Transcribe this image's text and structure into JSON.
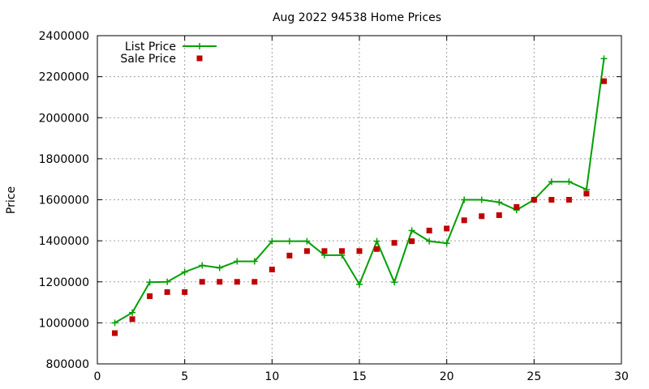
{
  "chart_data": {
    "type": "scatter",
    "title": "Aug 2022 94538 Home Prices",
    "xlabel": "",
    "ylabel": "Price",
    "xlim": [
      0,
      30
    ],
    "ylim": [
      800000,
      2400000
    ],
    "x_ticks": [
      0,
      5,
      10,
      15,
      20,
      25,
      30
    ],
    "y_ticks": [
      800000,
      1000000,
      1200000,
      1400000,
      1600000,
      1800000,
      2000000,
      2200000,
      2400000
    ],
    "grid": true,
    "legend_position": "top-left",
    "series": [
      {
        "name": "List Price",
        "style": "line-with-plus-markers",
        "color": "#00a000",
        "x": [
          1,
          2,
          3,
          4,
          5,
          6,
          7,
          8,
          9,
          10,
          11,
          12,
          13,
          14,
          15,
          16,
          17,
          18,
          19,
          20,
          21,
          22,
          23,
          24,
          25,
          26,
          27,
          28,
          29
        ],
        "values": [
          1000000,
          1050000,
          1198000,
          1200000,
          1248000,
          1280000,
          1268000,
          1300000,
          1300000,
          1398000,
          1398000,
          1398000,
          1330000,
          1330000,
          1188000,
          1398000,
          1198000,
          1450000,
          1398000,
          1388000,
          1600000,
          1600000,
          1588000,
          1550000,
          1600000,
          1688000,
          1688000,
          1650000,
          2288000
        ]
      },
      {
        "name": "Sale Price",
        "style": "square-markers",
        "color": "#c00000",
        "x": [
          1,
          2,
          3,
          4,
          5,
          6,
          7,
          8,
          9,
          10,
          11,
          12,
          13,
          14,
          15,
          16,
          17,
          18,
          19,
          20,
          21,
          22,
          23,
          24,
          25,
          26,
          27,
          28,
          29
        ],
        "values": [
          950000,
          1018000,
          1130000,
          1150000,
          1150000,
          1200000,
          1200000,
          1200000,
          1200000,
          1260000,
          1328000,
          1350000,
          1350000,
          1350000,
          1350000,
          1360000,
          1390000,
          1398000,
          1450000,
          1460000,
          1500000,
          1520000,
          1525000,
          1565000,
          1600000,
          1600000,
          1600000,
          1630000,
          2178000
        ]
      }
    ]
  }
}
